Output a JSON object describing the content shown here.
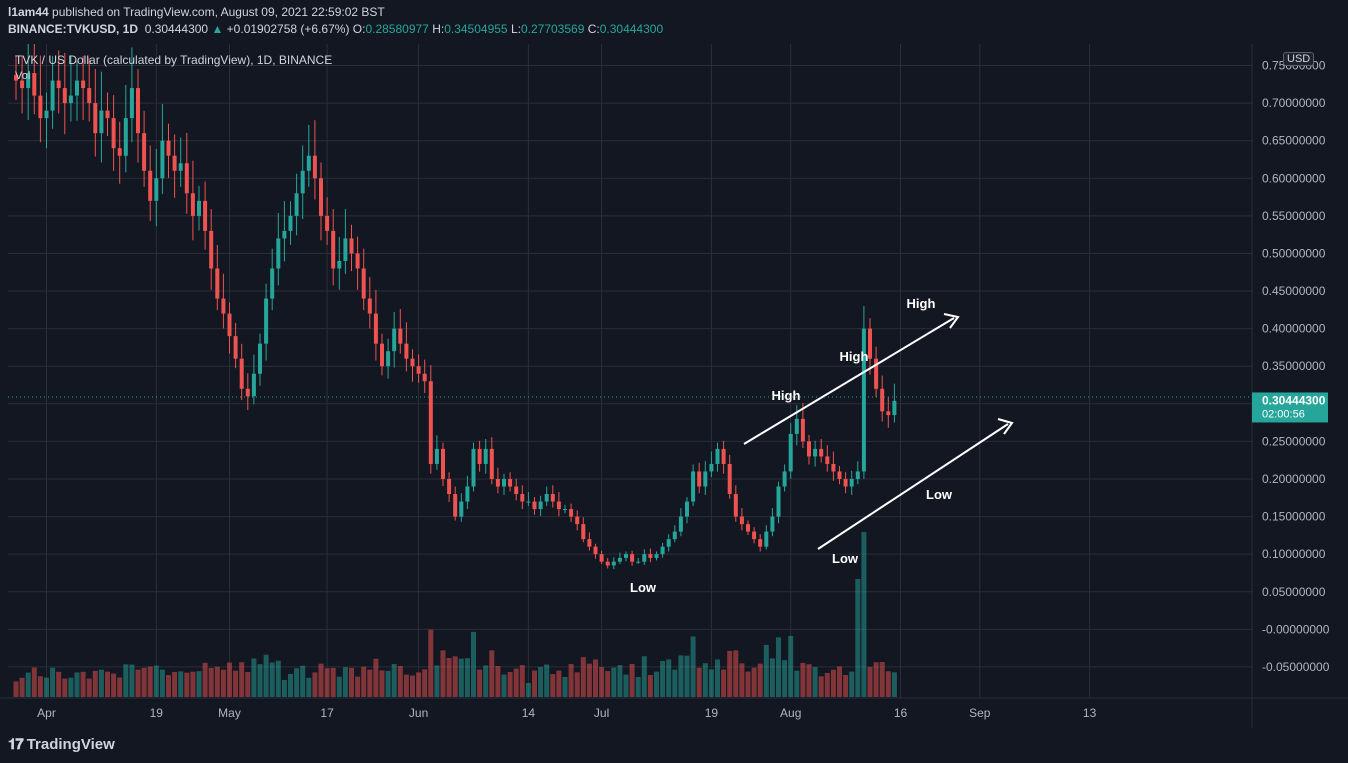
{
  "header": {
    "publisher": "l1am44",
    "published_text": "published on TradingView.com, August 09, 2021 22:59:02 BST",
    "symbol_line": "BINANCE:TVKUSD, 1D",
    "last": "0.30444300",
    "change": "+0.01902758 (+6.67%)",
    "o_label": "O:",
    "o_value": "0.28580977",
    "h_label": "H:",
    "h_value": "0.34504955",
    "l_label": "L:",
    "l_value": "0.27703569",
    "c_label": "C:",
    "c_value": "0.30444300"
  },
  "legend": {
    "title": "TVK / US Dollar (calculated by TradingView), 1D, BINANCE",
    "volume_label": "Vol"
  },
  "price_scale": {
    "currency": "USD",
    "last_price_label": "0.30444300",
    "countdown_label": "02:00:56"
  },
  "footer": {
    "logo_text": "TradingView"
  },
  "colors": {
    "up": "#26a69a",
    "down": "#ef5350",
    "bg": "#131722",
    "grid": "#2a2e39",
    "label": "#b2b5be"
  },
  "chart_data": {
    "type": "candlestick",
    "title": "TVK / US Dollar (calculated by TradingView), 1D, BINANCE",
    "ylim": [
      -0.09,
      0.76
    ],
    "y_ticks": [
      0.75,
      0.7,
      0.65,
      0.6,
      0.55,
      0.5,
      0.45,
      0.4,
      0.35,
      0.3,
      0.25,
      0.2,
      0.15,
      0.1,
      0.05,
      -0.0,
      -0.05
    ],
    "y_tick_labels": [
      "0.75000000",
      "0.70000000",
      "0.65000000",
      "0.60000000",
      "0.55000000",
      "0.50000000",
      "0.45000000",
      "0.40000000",
      "0.35000000",
      "0.30000000",
      "0.25000000",
      "0.20000000",
      "0.15000000",
      "0.10000000",
      "0.05000000",
      "-0.00000000",
      "-0.05000000"
    ],
    "x_labels": [
      "Apr",
      "19",
      "May",
      "17",
      "Jun",
      "14",
      "Jul",
      "19",
      "Aug",
      "16",
      "Sep",
      "13"
    ],
    "x_label_days": [
      6,
      24,
      36,
      52,
      67,
      85,
      97,
      115,
      128,
      146,
      159,
      177
    ],
    "first_day": 1,
    "last_price": 0.304443,
    "closes": [
      0.73,
      0.72,
      0.74,
      0.71,
      0.68,
      0.69,
      0.73,
      0.72,
      0.7,
      0.71,
      0.73,
      0.72,
      0.7,
      0.66,
      0.69,
      0.68,
      0.64,
      0.63,
      0.68,
      0.72,
      0.66,
      0.61,
      0.57,
      0.6,
      0.65,
      0.63,
      0.61,
      0.62,
      0.58,
      0.55,
      0.57,
      0.53,
      0.48,
      0.44,
      0.42,
      0.39,
      0.36,
      0.32,
      0.31,
      0.34,
      0.38,
      0.44,
      0.48,
      0.52,
      0.53,
      0.55,
      0.58,
      0.61,
      0.63,
      0.6,
      0.55,
      0.53,
      0.48,
      0.49,
      0.52,
      0.5,
      0.48,
      0.44,
      0.42,
      0.38,
      0.35,
      0.37,
      0.4,
      0.38,
      0.36,
      0.35,
      0.34,
      0.33,
      0.22,
      0.24,
      0.2,
      0.18,
      0.15,
      0.17,
      0.19,
      0.24,
      0.22,
      0.24,
      0.2,
      0.19,
      0.2,
      0.19,
      0.18,
      0.17,
      0.17,
      0.16,
      0.17,
      0.18,
      0.17,
      0.16,
      0.16,
      0.15,
      0.14,
      0.12,
      0.11,
      0.1,
      0.09,
      0.085,
      0.09,
      0.095,
      0.1,
      0.09,
      0.09,
      0.1,
      0.095,
      0.1,
      0.11,
      0.12,
      0.13,
      0.15,
      0.17,
      0.21,
      0.19,
      0.21,
      0.22,
      0.24,
      0.22,
      0.18,
      0.15,
      0.14,
      0.13,
      0.12,
      0.11,
      0.13,
      0.15,
      0.19,
      0.21,
      0.26,
      0.28,
      0.25,
      0.23,
      0.24,
      0.23,
      0.22,
      0.21,
      0.2,
      0.19,
      0.2,
      0.21,
      0.4,
      0.36,
      0.32,
      0.29,
      0.285,
      0.304
    ]
  }
}
